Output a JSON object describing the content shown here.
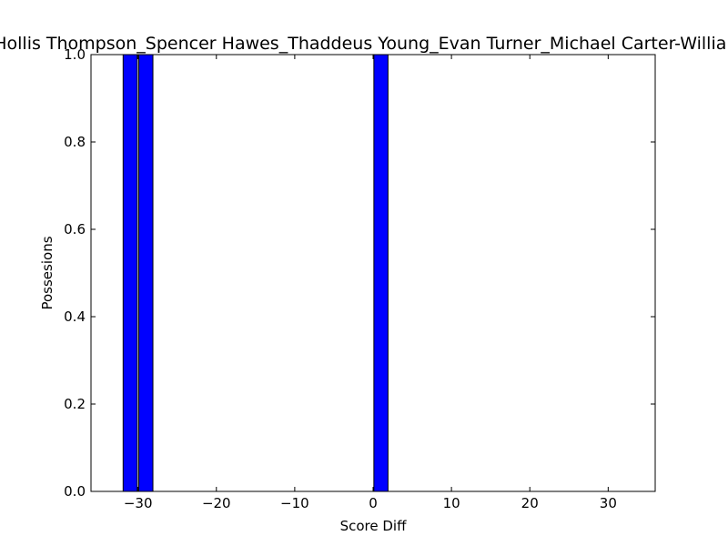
{
  "chart_data": {
    "type": "bar",
    "title": "Hollis Thompson_Spencer Hawes_Thaddeus Young_Evan Turner_Michael Carter-Williams",
    "xlabel": "Score Diff",
    "ylabel": "Possesions",
    "xlim": [
      -36,
      36
    ],
    "ylim": [
      0,
      1.0
    ],
    "bar_width": 1.8,
    "bars": [
      {
        "x": -31,
        "value": 1.0
      },
      {
        "x": -29,
        "value": 1.0
      },
      {
        "x": 1,
        "value": 1.0
      }
    ],
    "xticks": [
      -30,
      -20,
      -10,
      0,
      10,
      20,
      30
    ],
    "xtick_labels": [
      "−30",
      "−20",
      "−10",
      "0",
      "10",
      "20",
      "30"
    ],
    "yticks": [
      0.0,
      0.2,
      0.4,
      0.6,
      0.8,
      1.0
    ],
    "ytick_labels": [
      "0.0",
      "0.2",
      "0.4",
      "0.6",
      "0.8",
      "1.0"
    ],
    "grid": false,
    "bar_color": "#0000ff",
    "edge_color": "#000000"
  }
}
